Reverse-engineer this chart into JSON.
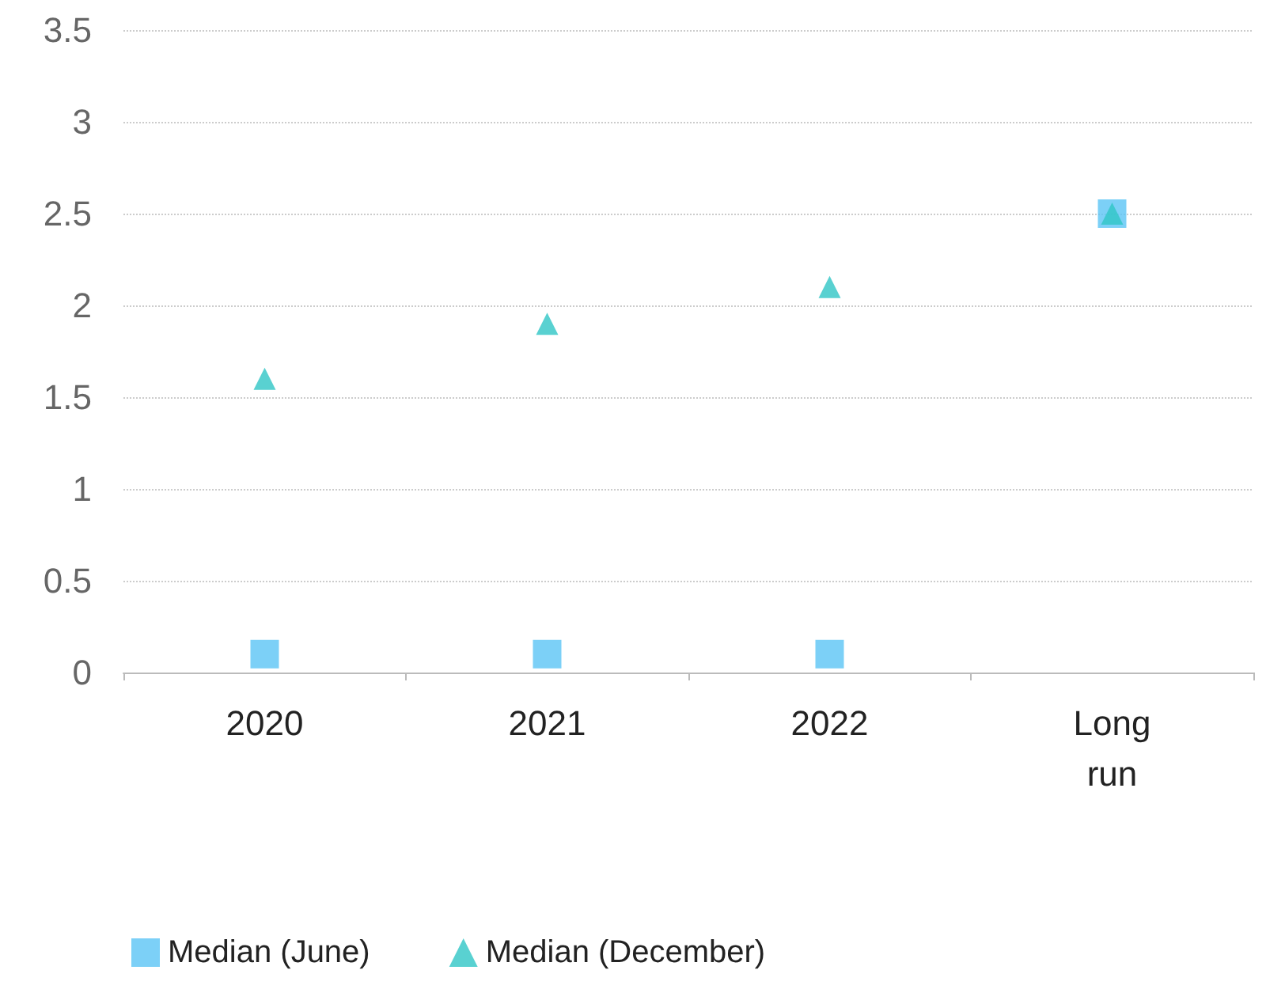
{
  "chart_data": {
    "type": "scatter",
    "categories": [
      "2020",
      "2021",
      "2022",
      "Long\nrun"
    ],
    "series": [
      {
        "name": "Median (June)",
        "color": "#5bc4f5",
        "marker": "square",
        "values": [
          0.1,
          0.1,
          0.1,
          2.5
        ]
      },
      {
        "name": "Median (December)",
        "color": "#2fc6c6",
        "marker": "triangle",
        "values": [
          1.6,
          1.9,
          2.1,
          2.5
        ]
      }
    ],
    "ylim": [
      0,
      3.5
    ],
    "yticks": [
      0,
      0.5,
      1,
      1.5,
      2,
      2.5,
      3,
      3.5
    ],
    "grid": "y",
    "legend": "bottom left"
  }
}
